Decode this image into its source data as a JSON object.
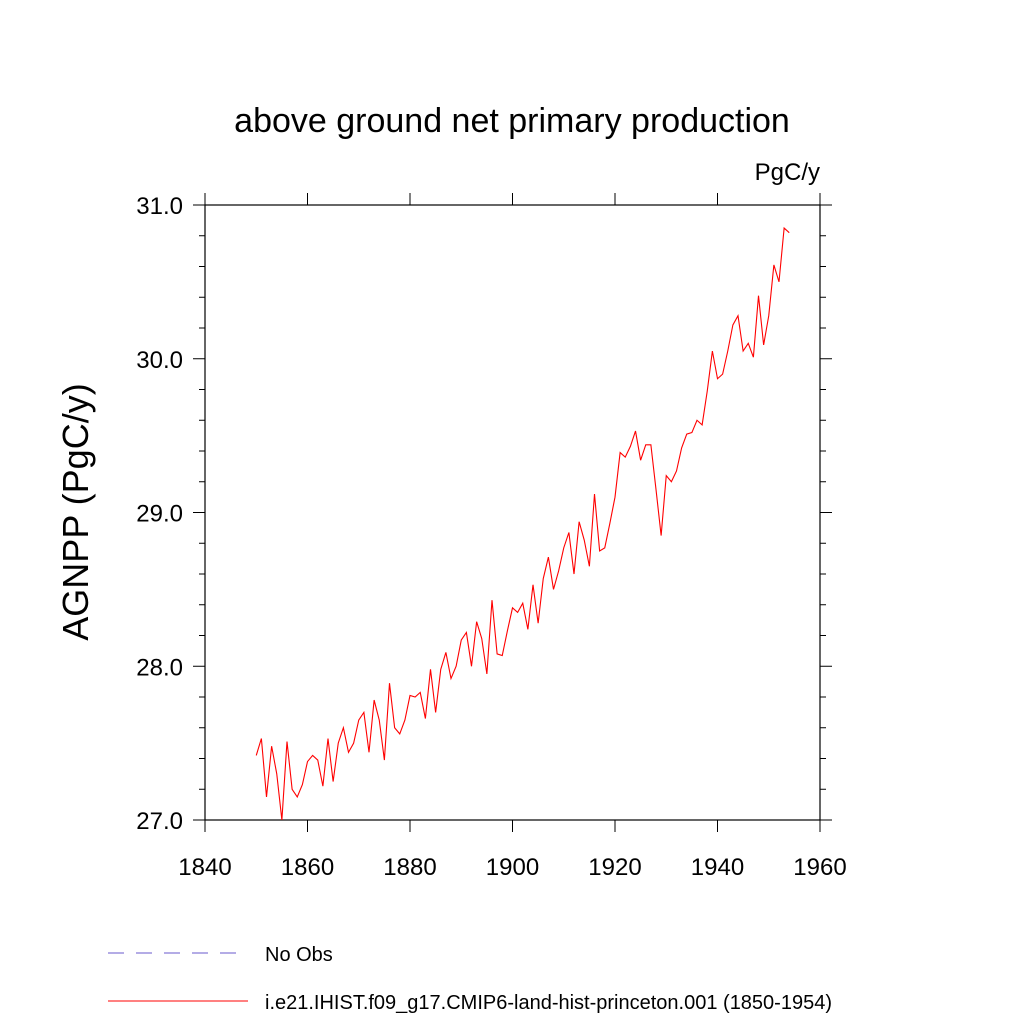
{
  "chart_data": {
    "type": "line",
    "title": "above ground net primary production",
    "units_label": "PgC/y",
    "ylabel": "AGNPP  (PgC/y)",
    "xlabel": "",
    "xlim": [
      1840,
      1960
    ],
    "ylim": [
      27.0,
      31.0
    ],
    "x_ticks": [
      1840,
      1860,
      1880,
      1900,
      1920,
      1940,
      1960
    ],
    "x_tick_labels": [
      "1840",
      "1860",
      "1880",
      "1900",
      "1920",
      "1940",
      "1960"
    ],
    "y_ticks": [
      27.0,
      28.0,
      29.0,
      30.0,
      31.0
    ],
    "y_tick_labels": [
      "27.0",
      "28.0",
      "29.0",
      "30.0",
      "31.0"
    ],
    "grid": false,
    "legend_position": "bottom-left, below plot",
    "series": [
      {
        "name": "No Obs",
        "color": "#6a5acd",
        "style": "dashed",
        "x": [],
        "y": []
      },
      {
        "name": "i.e21.IHIST.f09_g17.CMIP6-land-hist-princeton.001 (1850-1954)",
        "color": "#ff0000",
        "style": "solid",
        "x": [
          1850,
          1851,
          1852,
          1853,
          1854,
          1855,
          1856,
          1857,
          1858,
          1859,
          1860,
          1861,
          1862,
          1863,
          1864,
          1865,
          1866,
          1867,
          1868,
          1869,
          1870,
          1871,
          1872,
          1873,
          1874,
          1875,
          1876,
          1877,
          1878,
          1879,
          1880,
          1881,
          1882,
          1883,
          1884,
          1885,
          1886,
          1887,
          1888,
          1889,
          1890,
          1891,
          1892,
          1893,
          1894,
          1895,
          1896,
          1897,
          1898,
          1899,
          1900,
          1901,
          1902,
          1903,
          1904,
          1905,
          1906,
          1907,
          1908,
          1909,
          1910,
          1911,
          1912,
          1913,
          1914,
          1915,
          1916,
          1917,
          1918,
          1919,
          1920,
          1921,
          1922,
          1923,
          1924,
          1925,
          1926,
          1927,
          1928,
          1929,
          1930,
          1931,
          1932,
          1933,
          1934,
          1935,
          1936,
          1937,
          1938,
          1939,
          1940,
          1941,
          1942,
          1943,
          1944,
          1945,
          1946,
          1947,
          1948,
          1949,
          1950,
          1951,
          1952,
          1953,
          1954
        ],
        "y": [
          27.42,
          27.53,
          27.15,
          27.48,
          27.3,
          27.0,
          27.51,
          27.2,
          27.15,
          27.23,
          27.38,
          27.42,
          27.39,
          27.22,
          27.53,
          27.25,
          27.5,
          27.6,
          27.44,
          27.5,
          27.65,
          27.7,
          27.44,
          27.78,
          27.65,
          27.39,
          27.89,
          27.6,
          27.56,
          27.65,
          27.81,
          27.8,
          27.83,
          27.66,
          27.98,
          27.7,
          27.98,
          28.09,
          27.92,
          28.0,
          28.17,
          28.22,
          28.0,
          28.29,
          28.18,
          27.95,
          28.43,
          28.08,
          28.07,
          28.23,
          28.38,
          28.35,
          28.41,
          28.24,
          28.53,
          28.28,
          28.57,
          28.71,
          28.5,
          28.62,
          28.77,
          28.87,
          28.6,
          28.94,
          28.82,
          28.65,
          29.12,
          28.75,
          28.77,
          28.93,
          29.1,
          29.39,
          29.36,
          29.43,
          29.53,
          29.34,
          29.44,
          29.44,
          29.15,
          28.85,
          29.24,
          29.2,
          29.27,
          29.42,
          29.51,
          29.52,
          29.6,
          29.57,
          29.79,
          30.05,
          29.87,
          29.9,
          30.05,
          30.22,
          30.28,
          30.05,
          30.1,
          30.01,
          30.41,
          30.09,
          30.28,
          30.61,
          30.5,
          30.85,
          30.82
        ]
      }
    ]
  }
}
